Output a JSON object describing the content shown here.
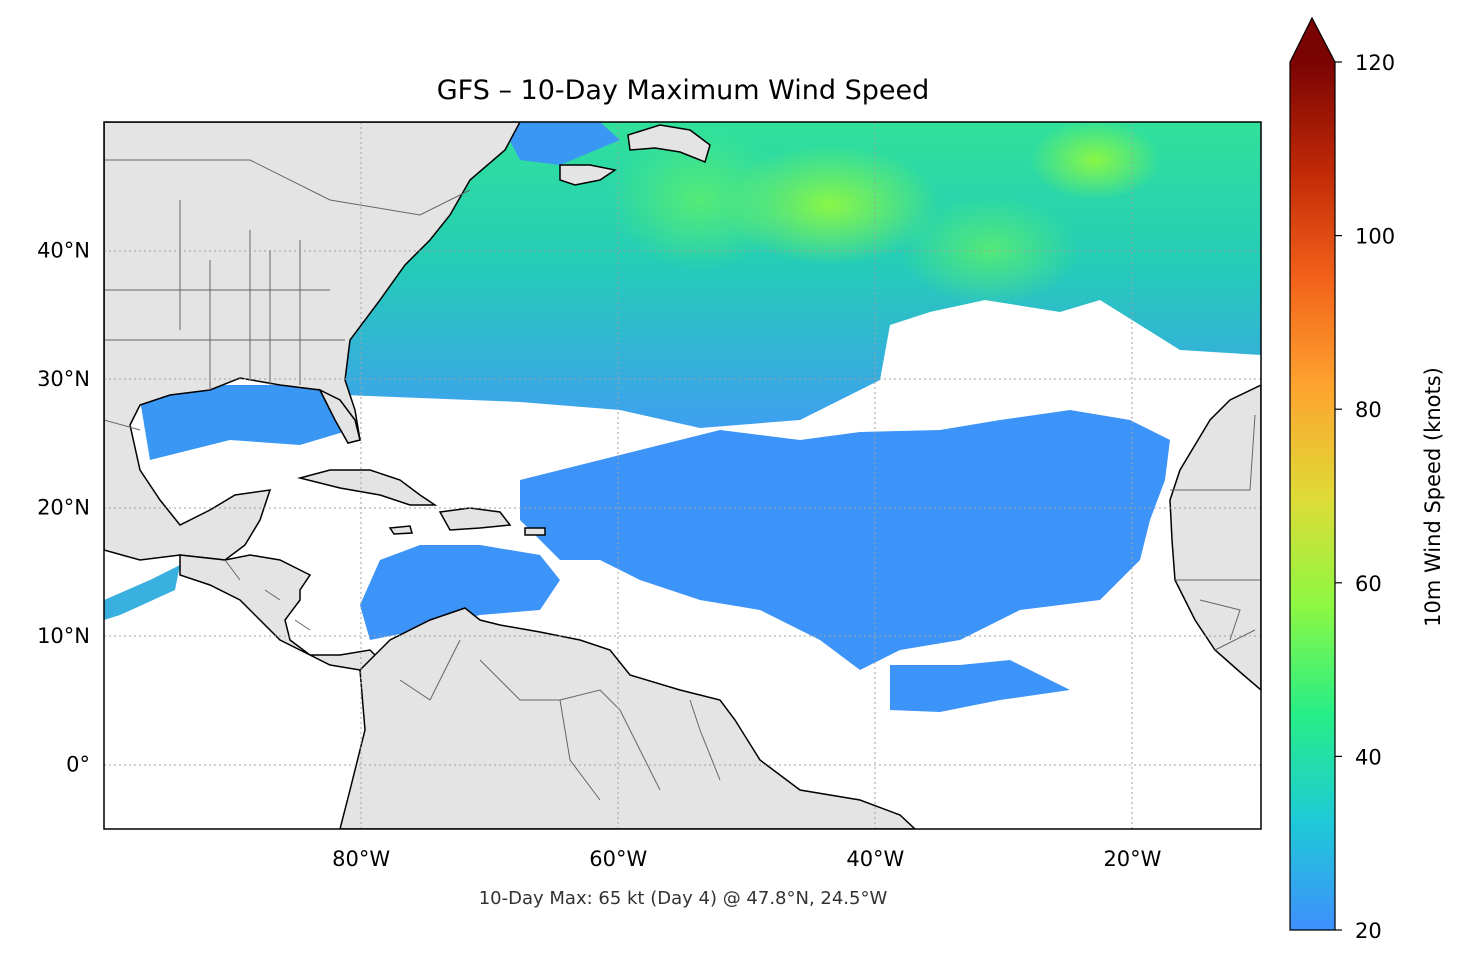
{
  "title": "GFS – 10-Day Maximum Wind Speed",
  "footer": "10-Day Max: 65 kt (Day 4) @ 47.8°N, 24.5°W",
  "map": {
    "projection": "PlateCarree",
    "extent": {
      "lon_min": -100,
      "lon_max": -10,
      "lat_min": -5,
      "lat_max": 50
    },
    "land_color": "#e4e4e4",
    "ocean_color": "#ffffff",
    "coastline_color": "#000000",
    "border_color": "#666666",
    "gridlines": "dotted",
    "lat_ticks": [
      {
        "value": 0,
        "label": "0°"
      },
      {
        "value": 10,
        "label": "10°N"
      },
      {
        "value": 20,
        "label": "20°N"
      },
      {
        "value": 30,
        "label": "30°N"
      },
      {
        "value": 40,
        "label": "40°N"
      }
    ],
    "lon_ticks": [
      {
        "value": -80,
        "label": "80°W"
      },
      {
        "value": -60,
        "label": "60°W"
      },
      {
        "value": -40,
        "label": "40°W"
      },
      {
        "value": -20,
        "label": "20°W"
      }
    ]
  },
  "colorbar": {
    "label": "10m Wind Speed (knots)",
    "min": 20,
    "max": 120,
    "extend": "max",
    "ticks": [
      {
        "value": 20,
        "label": "20"
      },
      {
        "value": 40,
        "label": "40"
      },
      {
        "value": 60,
        "label": "60"
      },
      {
        "value": 80,
        "label": "80"
      },
      {
        "value": 100,
        "label": "100"
      },
      {
        "value": 120,
        "label": "120"
      }
    ],
    "stops": [
      "#3f8ffd",
      "#1ecad7",
      "#27ee86",
      "#8ef842",
      "#e0da37",
      "#fea42f",
      "#f2621a",
      "#c02907",
      "#7a0403"
    ],
    "extend_color": "#7a0403"
  },
  "max_wind": {
    "value_kt": 65,
    "day": 4,
    "lat": 47.8,
    "lon": -24.5
  }
}
